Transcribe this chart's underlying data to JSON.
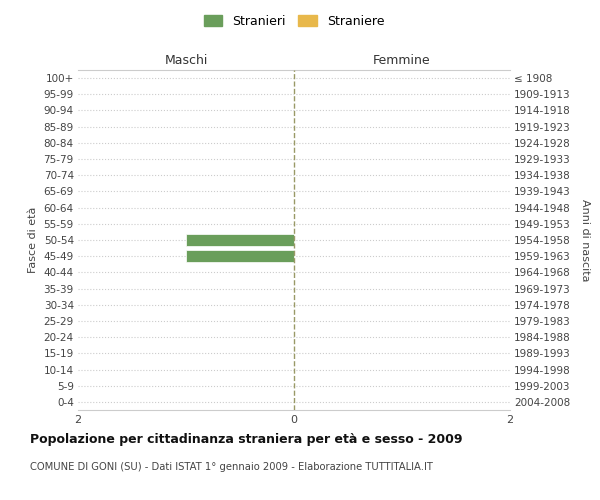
{
  "age_groups": [
    "100+",
    "95-99",
    "90-94",
    "85-89",
    "80-84",
    "75-79",
    "70-74",
    "65-69",
    "60-64",
    "55-59",
    "50-54",
    "45-49",
    "40-44",
    "35-39",
    "30-34",
    "25-29",
    "20-24",
    "15-19",
    "10-14",
    "5-9",
    "0-4"
  ],
  "birth_years": [
    "≤ 1908",
    "1909-1913",
    "1914-1918",
    "1919-1923",
    "1924-1928",
    "1929-1933",
    "1934-1938",
    "1939-1943",
    "1944-1948",
    "1949-1953",
    "1954-1958",
    "1959-1963",
    "1964-1968",
    "1969-1973",
    "1974-1978",
    "1979-1983",
    "1984-1988",
    "1989-1993",
    "1994-1998",
    "1999-2003",
    "2004-2008"
  ],
  "maschi_stranieri": [
    0,
    0,
    0,
    0,
    0,
    0,
    0,
    0,
    0,
    0,
    1,
    1,
    0,
    0,
    0,
    0,
    0,
    0,
    0,
    0,
    0
  ],
  "femmine_straniere": [
    0,
    0,
    0,
    0,
    0,
    0,
    0,
    0,
    0,
    0,
    0,
    0,
    0,
    0,
    0,
    0,
    0,
    0,
    0,
    0,
    0
  ],
  "color_stranieri": "#6a9e5b",
  "color_straniere": "#e8b84b",
  "xlim": 2,
  "header_left": "Maschi",
  "header_right": "Femmine",
  "ylabel_left": "Fasce di età",
  "ylabel_right": "Anni di nascita",
  "legend_stranieri": "Stranieri",
  "legend_straniere": "Straniere",
  "title": "Popolazione per cittadinanza straniera per età e sesso - 2009",
  "subtitle": "COMUNE DI GONI (SU) - Dati ISTAT 1° gennaio 2009 - Elaborazione TUTTITALIA.IT",
  "bg_color": "#ffffff",
  "grid_color": "#cccccc",
  "bar_edge_color": "#ffffff",
  "center_line_color": "#999966"
}
